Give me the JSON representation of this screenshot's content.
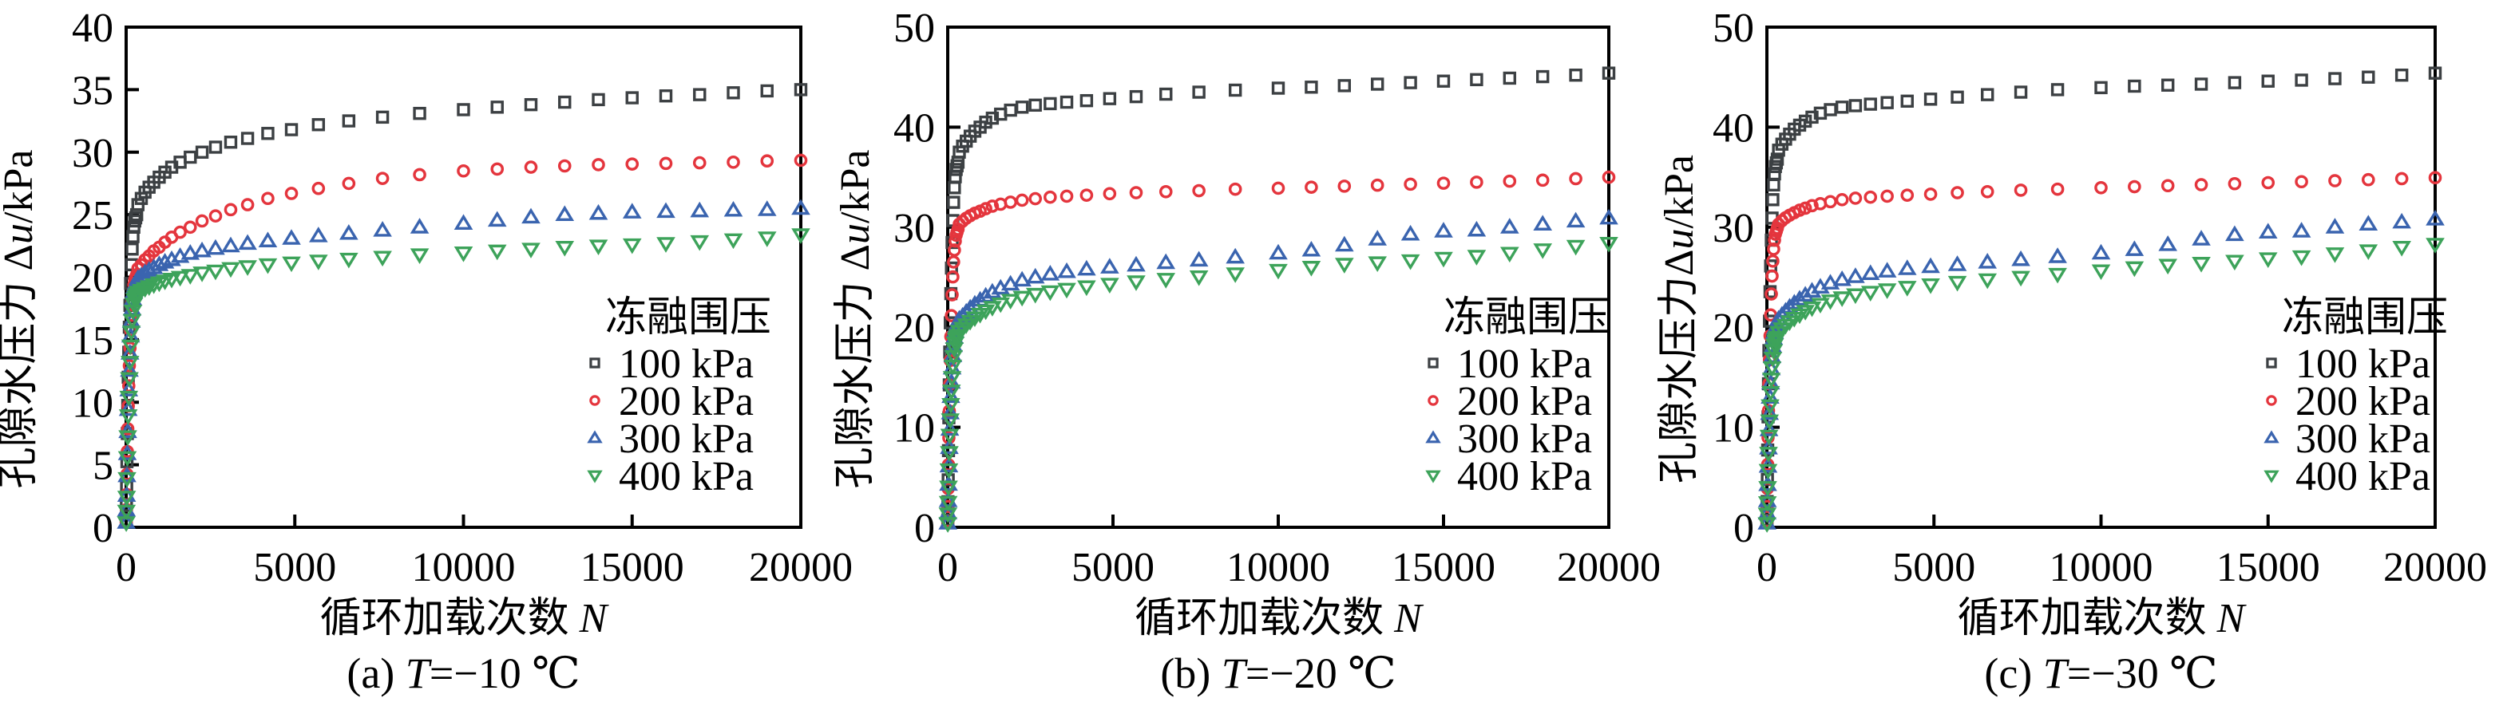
{
  "figure": {
    "background": "#ffffff",
    "text_color": "#000000",
    "frame_color": "#000000"
  },
  "chart_data": {
    "type": "scatter",
    "x_grid": [
      350,
      450,
      560,
      680,
      820,
      980,
      1150,
      1350,
      1600,
      1900,
      2250,
      2650,
      3100,
      3600,
      4200,
      4900,
      5700,
      6600,
      7600,
      8700,
      10000,
      11000,
      12000,
      13000,
      14000,
      15000,
      16000,
      17000,
      18000,
      19000,
      20000
    ],
    "rise_profile": {
      "n": [
        3,
        8,
        15,
        24,
        35,
        48,
        62,
        78,
        95,
        113,
        133,
        155,
        178,
        202,
        228,
        255,
        283,
        312
      ],
      "fraction": [
        0.02,
        0.07,
        0.13,
        0.21,
        0.3,
        0.39,
        0.48,
        0.56,
        0.64,
        0.71,
        0.78,
        0.84,
        0.89,
        0.93,
        0.96,
        0.98,
        0.99,
        1.0
      ]
    },
    "panels": [
      {
        "id": "a",
        "caption": {
          "prefix": "(a) ",
          "var": "T",
          "rest": "=−10 ℃"
        },
        "xlabel": {
          "cn": "循环加载次数",
          "var": "N"
        },
        "ylabel": {
          "cn": "孔隙水压力",
          "delta": "Δ",
          "var": "u",
          "unit": "/kPa",
          "gap": true
        },
        "xlim": [
          0,
          20000
        ],
        "ylim": [
          0,
          40
        ],
        "xticks": [
          0,
          5000,
          10000,
          15000,
          20000
        ],
        "yticks": [
          0,
          5,
          10,
          15,
          20,
          25,
          30,
          35,
          40
        ],
        "legend": {
          "title": "冻融围压"
        },
        "series": [
          {
            "label": "100 kPa",
            "marker": "open-square",
            "color": "#3c4043",
            "rise_peak": 25.0,
            "y": [
              25.8,
              26.3,
              26.8,
              27.2,
              27.6,
              28.0,
              28.4,
              28.8,
              29.2,
              29.6,
              30.0,
              30.4,
              30.8,
              31.1,
              31.5,
              31.8,
              32.2,
              32.5,
              32.8,
              33.1,
              33.4,
              33.6,
              33.8,
              34.0,
              34.2,
              34.35,
              34.5,
              34.6,
              34.75,
              34.9,
              35.0
            ]
          },
          {
            "label": "200 kPa",
            "marker": "open-circle",
            "color": "#e4353d",
            "rise_peak": 20.2,
            "y": [
              20.7,
              21.0,
              21.4,
              21.7,
              22.1,
              22.4,
              22.8,
              23.2,
              23.6,
              24.0,
              24.5,
              24.9,
              25.4,
              25.8,
              26.3,
              26.7,
              27.1,
              27.5,
              27.9,
              28.2,
              28.5,
              28.65,
              28.8,
              28.9,
              29.0,
              29.05,
              29.1,
              29.15,
              29.2,
              29.3,
              29.35
            ]
          },
          {
            "label": "300 kPa",
            "marker": "open-triangle-up",
            "color": "#3a64af",
            "rise_peak": 19.6,
            "y": [
              19.9,
              20.1,
              20.35,
              20.55,
              20.75,
              21.0,
              21.2,
              21.4,
              21.65,
              21.9,
              22.1,
              22.3,
              22.5,
              22.7,
              22.9,
              23.1,
              23.3,
              23.5,
              23.75,
              24.0,
              24.3,
              24.55,
              24.8,
              25.0,
              25.1,
              25.2,
              25.25,
              25.3,
              25.35,
              25.4,
              25.5
            ]
          },
          {
            "label": "400 kPa",
            "marker": "open-triangle-down",
            "color": "#3da35a",
            "rise_peak": 18.6,
            "y": [
              18.8,
              18.95,
              19.1,
              19.25,
              19.4,
              19.55,
              19.7,
              19.85,
              20.0,
              20.15,
              20.35,
              20.5,
              20.7,
              20.85,
              21.0,
              21.15,
              21.3,
              21.45,
              21.6,
              21.8,
              21.95,
              22.1,
              22.25,
              22.4,
              22.5,
              22.6,
              22.7,
              22.85,
              23.0,
              23.15,
              23.4
            ]
          }
        ]
      },
      {
        "id": "b",
        "caption": {
          "prefix": "(b) ",
          "var": "T",
          "rest": "=−20 ℃"
        },
        "xlabel": {
          "cn": "循环加载次数",
          "var": "N"
        },
        "ylabel": {
          "cn": "孔隙水压力",
          "delta": "Δ",
          "var": "u",
          "unit": "/kPa",
          "gap": true
        },
        "xlim": [
          0,
          20000
        ],
        "ylim": [
          0,
          50
        ],
        "xticks": [
          0,
          5000,
          10000,
          15000,
          20000
        ],
        "yticks": [
          0,
          10,
          20,
          30,
          40,
          50
        ],
        "legend": {
          "title": "冻融围压"
        },
        "series": [
          {
            "label": "100 kPa",
            "marker": "open-square",
            "color": "#3c4043",
            "rise_peak": 36.5,
            "y": [
              37.5,
              38.1,
              38.6,
              39.1,
              39.6,
              40.0,
              40.5,
              40.9,
              41.3,
              41.7,
              42.0,
              42.2,
              42.35,
              42.5,
              42.65,
              42.85,
              43.05,
              43.3,
              43.5,
              43.7,
              43.9,
              44.0,
              44.15,
              44.3,
              44.45,
              44.6,
              44.75,
              44.9,
              45.05,
              45.2,
              45.4
            ]
          },
          {
            "label": "200 kPa",
            "marker": "open-circle",
            "color": "#e4353d",
            "rise_peak": 29.8,
            "y": [
              30.3,
              30.6,
              30.9,
              31.15,
              31.4,
              31.6,
              31.85,
              32.1,
              32.3,
              32.5,
              32.7,
              32.85,
              33.0,
              33.1,
              33.2,
              33.35,
              33.45,
              33.55,
              33.65,
              33.8,
              33.9,
              34.0,
              34.1,
              34.2,
              34.3,
              34.4,
              34.5,
              34.6,
              34.7,
              34.85,
              35.0
            ]
          },
          {
            "label": "300 kPa",
            "marker": "open-triangle-up",
            "color": "#3a64af",
            "rise_peak": 20.4,
            "y": [
              20.8,
              21.1,
              21.5,
              21.9,
              22.3,
              22.7,
              23.1,
              23.5,
              23.9,
              24.3,
              24.7,
              25.0,
              25.3,
              25.55,
              25.8,
              26.0,
              26.2,
              26.45,
              26.7,
              27.0,
              27.4,
              27.7,
              28.2,
              28.8,
              29.3,
              29.6,
              29.7,
              30.0,
              30.3,
              30.6,
              30.9
            ]
          },
          {
            "label": "400 kPa",
            "marker": "open-triangle-down",
            "color": "#3da35a",
            "rise_peak": 19.2,
            "y": [
              19.6,
              19.9,
              20.25,
              20.6,
              20.95,
              21.3,
              21.65,
              22.0,
              22.35,
              22.7,
              23.0,
              23.3,
              23.55,
              23.8,
              24.05,
              24.3,
              24.55,
              24.8,
              25.05,
              25.35,
              25.7,
              26.0,
              26.3,
              26.45,
              26.65,
              26.9,
              27.1,
              27.4,
              27.75,
              28.1,
              28.4
            ]
          }
        ]
      },
      {
        "id": "c",
        "caption": {
          "prefix": "(c) ",
          "var": "T",
          "rest": "=−30 ℃"
        },
        "xlabel": {
          "cn": "循环加载次数",
          "var": "N"
        },
        "ylabel": {
          "cn": "孔隙水压力",
          "delta": "Δ",
          "var": "u",
          "unit": "/kPa",
          "gap": false
        },
        "xlim": [
          0,
          20000
        ],
        "ylim": [
          0,
          50
        ],
        "xticks": [
          0,
          5000,
          10000,
          15000,
          20000
        ],
        "yticks": [
          0,
          10,
          20,
          30,
          40,
          50
        ],
        "legend": {
          "title": "冻融围压"
        },
        "series": [
          {
            "label": "100 kPa",
            "marker": "open-square",
            "color": "#3c4043",
            "rise_peak": 36.8,
            "y": [
              37.7,
              38.3,
              38.8,
              39.3,
              39.8,
              40.2,
              40.6,
              41.0,
              41.4,
              41.75,
              42.0,
              42.15,
              42.3,
              42.45,
              42.6,
              42.8,
              43.0,
              43.25,
              43.5,
              43.75,
              43.95,
              44.1,
              44.2,
              44.3,
              44.45,
              44.6,
              44.7,
              44.85,
              45.0,
              45.2,
              45.4
            ]
          },
          {
            "label": "200 kPa",
            "marker": "open-circle",
            "color": "#e4353d",
            "rise_peak": 29.9,
            "y": [
              30.3,
              30.65,
              30.95,
              31.2,
              31.45,
              31.7,
              31.9,
              32.15,
              32.35,
              32.55,
              32.75,
              32.9,
              33.0,
              33.1,
              33.2,
              33.3,
              33.45,
              33.55,
              33.7,
              33.8,
              33.95,
              34.05,
              34.15,
              34.25,
              34.35,
              34.45,
              34.55,
              34.65,
              34.75,
              34.85,
              34.95
            ]
          },
          {
            "label": "300 kPa",
            "marker": "open-triangle-up",
            "color": "#3a64af",
            "rise_peak": 20.3,
            "y": [
              20.8,
              21.2,
              21.6,
              22.0,
              22.4,
              22.8,
              23.2,
              23.6,
              24.0,
              24.4,
              24.75,
              25.05,
              25.35,
              25.6,
              25.85,
              26.05,
              26.25,
              26.5,
              26.75,
              27.05,
              27.4,
              27.75,
              28.25,
              28.8,
              29.25,
              29.5,
              29.6,
              30.0,
              30.3,
              30.5,
              30.8
            ]
          },
          {
            "label": "400 kPa",
            "marker": "open-triangle-down",
            "color": "#3da35a",
            "rise_peak": 19.0,
            "y": [
              19.5,
              19.85,
              20.2,
              20.55,
              20.9,
              21.25,
              21.6,
              21.95,
              22.3,
              22.65,
              22.95,
              23.25,
              23.5,
              23.75,
              24.0,
              24.25,
              24.5,
              24.75,
              25.0,
              25.3,
              25.65,
              25.95,
              26.2,
              26.4,
              26.6,
              26.85,
              27.05,
              27.35,
              27.65,
              28.0,
              28.3
            ]
          }
        ]
      }
    ]
  }
}
